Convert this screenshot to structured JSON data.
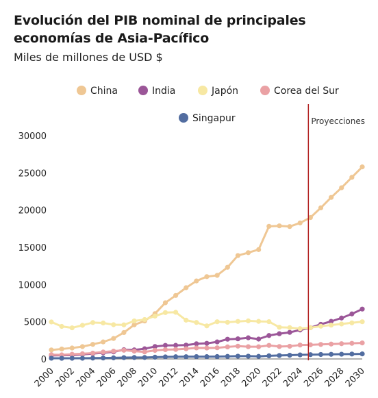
{
  "chart_data": {
    "type": "line",
    "title": "Evolución del PIB nominal de principales economías de Asia-Pacífico",
    "subtitle": "Miles de millones de USD $",
    "x": [
      2000,
      2001,
      2002,
      2003,
      2004,
      2005,
      2006,
      2007,
      2008,
      2009,
      2010,
      2011,
      2012,
      2013,
      2014,
      2015,
      2016,
      2017,
      2018,
      2019,
      2020,
      2021,
      2022,
      2023,
      2024,
      2025,
      2026,
      2027,
      2028,
      2029,
      2030
    ],
    "xticks": [
      2000,
      2002,
      2004,
      2006,
      2008,
      2010,
      2012,
      2014,
      2016,
      2018,
      2020,
      2022,
      2024,
      2026,
      2028,
      2030
    ],
    "yticks": [
      0,
      5000,
      10000,
      15000,
      20000,
      25000,
      30000
    ],
    "ylim": [
      0,
      30000
    ],
    "xlim": [
      2000,
      2030
    ],
    "grid": false,
    "legend_position": "top",
    "annotation": {
      "label": "Proyecciones",
      "x": 2025,
      "color": "#b22222"
    },
    "series": [
      {
        "name": "China",
        "color": "#efc794",
        "values": [
          1210,
          1340,
          1470,
          1660,
          1960,
          2290,
          2750,
          3550,
          4590,
          5100,
          6090,
          7550,
          8530,
          9570,
          10480,
          11060,
          11230,
          12310,
          13890,
          14280,
          14690,
          17820,
          17880,
          17790,
          18270,
          19000,
          20300,
          21700,
          23000,
          24400,
          25800
        ]
      },
      {
        "name": "India",
        "color": "#9b5698",
        "values": [
          470,
          490,
          520,
          610,
          720,
          830,
          950,
          1240,
          1220,
          1370,
          1670,
          1820,
          1830,
          1860,
          2040,
          2100,
          2290,
          2650,
          2700,
          2840,
          2670,
          3150,
          3390,
          3570,
          3890,
          4200,
          4650,
          5050,
          5500,
          6050,
          6700
        ]
      },
      {
        "name": "Japón",
        "color": "#f7e8a3",
        "values": [
          4970,
          4370,
          4180,
          4520,
          4890,
          4830,
          4600,
          4580,
          5110,
          5290,
          5760,
          6230,
          6270,
          5210,
          4900,
          4440,
          5000,
          4930,
          5040,
          5120,
          5050,
          5010,
          4260,
          4210,
          4070,
          4200,
          4400,
          4550,
          4700,
          4850,
          5000
        ]
      },
      {
        "name": "Corea del Sur",
        "color": "#eaa1a4",
        "values": [
          580,
          550,
          630,
          700,
          790,
          930,
          1050,
          1170,
          1050,
          940,
          1150,
          1250,
          1280,
          1370,
          1480,
          1470,
          1500,
          1620,
          1720,
          1650,
          1640,
          1820,
          1670,
          1710,
          1870,
          1900,
          1950,
          2000,
          2050,
          2100,
          2150
        ]
      },
      {
        "name": "Singapur",
        "color": "#526da0",
        "values": [
          96,
          90,
          92,
          98,
          115,
          127,
          148,
          180,
          193,
          194,
          240,
          280,
          296,
          307,
          314,
          308,
          319,
          343,
          376,
          375,
          345,
          424,
          467,
          501,
          547,
          580,
          600,
          620,
          640,
          660,
          680
        ]
      }
    ]
  }
}
